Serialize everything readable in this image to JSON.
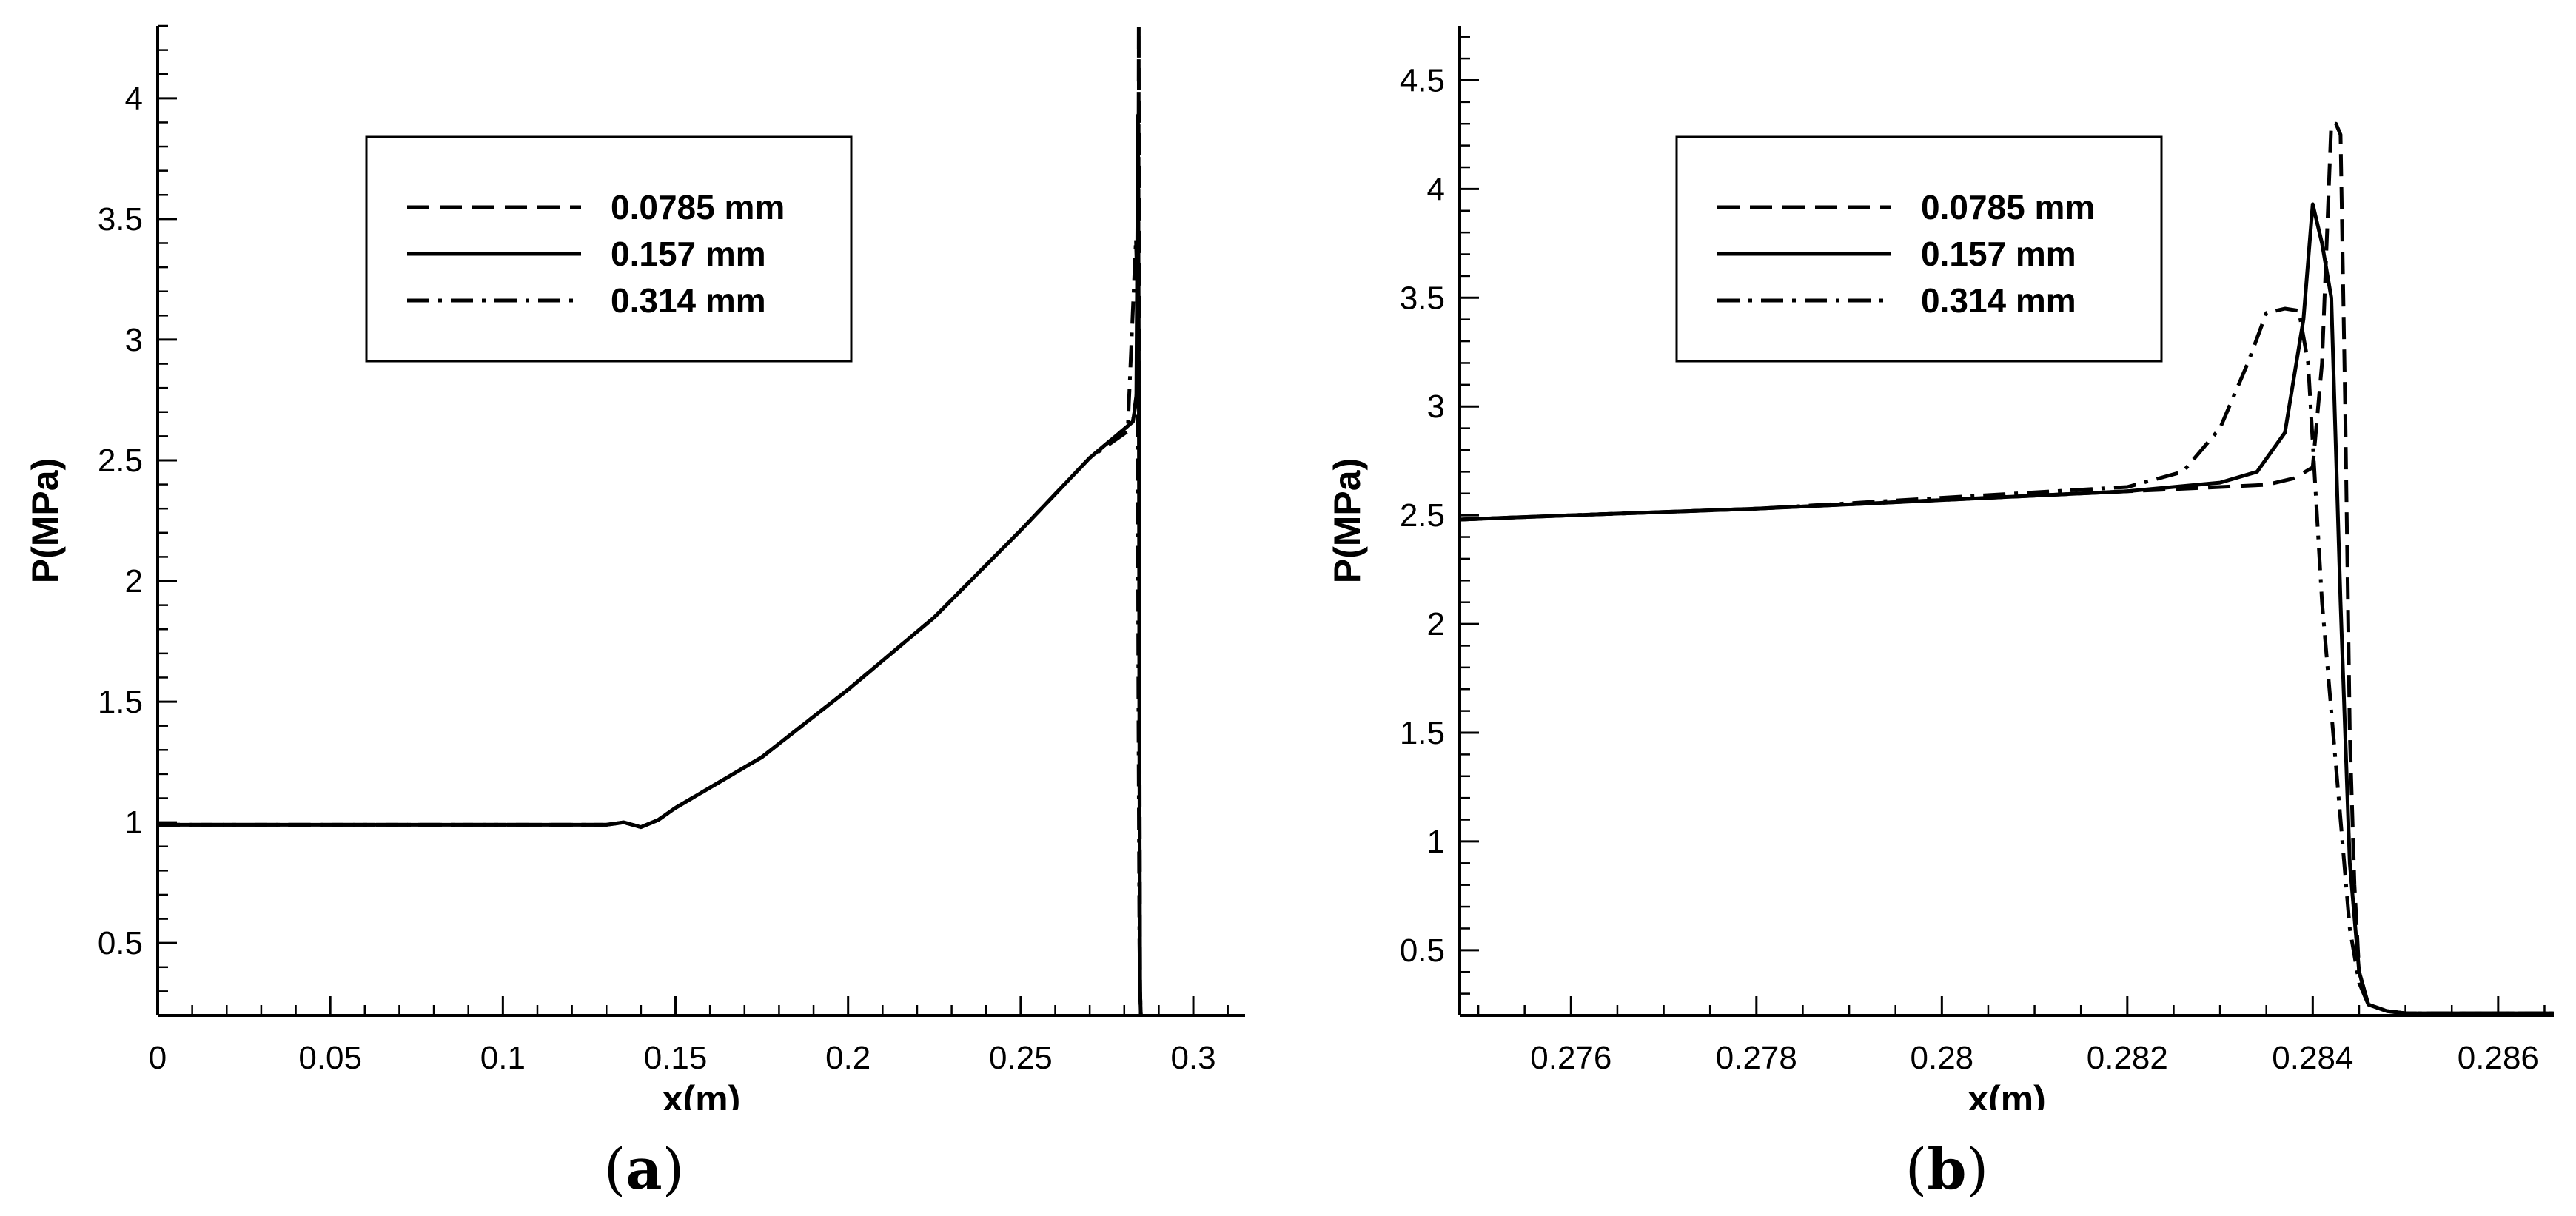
{
  "chart_data": [
    {
      "type": "line",
      "panel_label": "a",
      "xlabel": "x(m)",
      "ylabel": "P(MPa)",
      "xlim": [
        0,
        0.315
      ],
      "ylim": [
        0.2,
        4.3
      ],
      "xticks": [
        0,
        0.05,
        0.1,
        0.15,
        0.2,
        0.25,
        0.3
      ],
      "xtick_labels": [
        "0",
        "0.05",
        "0.1",
        "0.15",
        "0.2",
        "0.25",
        "0.3"
      ],
      "yticks": [
        0.5,
        1,
        1.5,
        2,
        2.5,
        3,
        3.5,
        4
      ],
      "ytick_labels": [
        "0.5",
        "1",
        "1.5",
        "2",
        "2.5",
        "3",
        "3.5",
        "4"
      ],
      "legend_position": "upper-center",
      "series": [
        {
          "name": "0.0785 mm",
          "style": "dashed",
          "x": [
            0,
            0.05,
            0.1,
            0.13,
            0.135,
            0.14,
            0.145,
            0.15,
            0.175,
            0.2,
            0.225,
            0.25,
            0.27,
            0.2825,
            0.2838,
            0.2841,
            0.2842,
            0.2843,
            0.2844,
            0.2846,
            0.2848
          ],
          "y": [
            0.99,
            0.99,
            0.99,
            0.99,
            1.0,
            0.98,
            1.01,
            1.06,
            1.27,
            1.55,
            1.85,
            2.21,
            2.51,
            2.66,
            2.8,
            3.3,
            4.3,
            3.0,
            1.5,
            0.3,
            0.2
          ]
        },
        {
          "name": "0.157 mm",
          "style": "solid",
          "x": [
            0,
            0.05,
            0.1,
            0.13,
            0.135,
            0.14,
            0.145,
            0.15,
            0.175,
            0.2,
            0.225,
            0.25,
            0.27,
            0.2825,
            0.2835,
            0.284,
            0.2842,
            0.2844,
            0.2846,
            0.2848
          ],
          "y": [
            0.99,
            0.99,
            0.99,
            0.99,
            1.0,
            0.98,
            1.01,
            1.06,
            1.27,
            1.55,
            1.85,
            2.21,
            2.51,
            2.66,
            2.75,
            3.93,
            3.0,
            1.2,
            0.3,
            0.2
          ]
        },
        {
          "name": "0.314 mm",
          "style": "dashdot",
          "x": [
            0,
            0.05,
            0.1,
            0.13,
            0.135,
            0.14,
            0.145,
            0.15,
            0.175,
            0.2,
            0.225,
            0.25,
            0.27,
            0.281,
            0.2834,
            0.2838,
            0.2841,
            0.2844,
            0.2846,
            0.2848
          ],
          "y": [
            0.99,
            0.99,
            0.99,
            0.99,
            1.0,
            0.98,
            1.01,
            1.06,
            1.27,
            1.55,
            1.85,
            2.21,
            2.51,
            2.62,
            3.42,
            3.2,
            1.5,
            0.5,
            0.3,
            0.2
          ]
        }
      ]
    },
    {
      "type": "line",
      "panel_label": "b",
      "xlabel": "x(m)",
      "ylabel": "P(MPa)",
      "xlim": [
        0.2748,
        0.2866
      ],
      "ylim": [
        0.2,
        4.75
      ],
      "xticks": [
        0.276,
        0.278,
        0.28,
        0.282,
        0.284,
        0.286
      ],
      "xtick_labels": [
        "0.276",
        "0.278",
        "0.28",
        "0.282",
        "0.284",
        "0.286"
      ],
      "yticks": [
        0.5,
        1,
        1.5,
        2,
        2.5,
        3,
        3.5,
        4,
        4.5
      ],
      "ytick_labels": [
        "0.5",
        "1",
        "1.5",
        "2",
        "2.5",
        "3",
        "3.5",
        "4",
        "4.5"
      ],
      "legend_position": "upper-center",
      "series": [
        {
          "name": "0.0785 mm",
          "style": "dashed",
          "x": [
            0.2748,
            0.276,
            0.278,
            0.28,
            0.282,
            0.283,
            0.2835,
            0.2838,
            0.284,
            0.2841,
            0.2842,
            0.28425,
            0.2843,
            0.28435,
            0.2844,
            0.28445,
            0.2845,
            0.2846,
            0.2848,
            0.285,
            0.2866
          ],
          "y": [
            2.48,
            2.5,
            2.53,
            2.57,
            2.61,
            2.63,
            2.64,
            2.67,
            2.72,
            3.2,
            4.3,
            4.3,
            4.25,
            3.0,
            1.5,
            0.8,
            0.4,
            0.25,
            0.22,
            0.21,
            0.21
          ]
        },
        {
          "name": "0.157 mm",
          "style": "solid",
          "x": [
            0.2748,
            0.276,
            0.278,
            0.28,
            0.282,
            0.283,
            0.2834,
            0.2837,
            0.2839,
            0.284,
            0.2841,
            0.2842,
            0.2843,
            0.2844,
            0.2845,
            0.2846,
            0.2848,
            0.285,
            0.2866
          ],
          "y": [
            2.48,
            2.5,
            2.53,
            2.57,
            2.61,
            2.65,
            2.7,
            2.88,
            3.4,
            3.93,
            3.75,
            3.5,
            2.1,
            0.9,
            0.4,
            0.25,
            0.22,
            0.21,
            0.21
          ]
        },
        {
          "name": "0.314 mm",
          "style": "dashdot",
          "x": [
            0.2748,
            0.276,
            0.278,
            0.28,
            0.282,
            0.2826,
            0.283,
            0.2833,
            0.2835,
            0.2837,
            0.28385,
            0.28395,
            0.2841,
            0.2843,
            0.2844,
            0.2845,
            0.2846,
            0.2848,
            0.285,
            0.2866
          ],
          "y": [
            2.48,
            2.5,
            2.53,
            2.58,
            2.63,
            2.7,
            2.9,
            3.2,
            3.43,
            3.45,
            3.44,
            3.2,
            2.1,
            1.1,
            0.6,
            0.35,
            0.25,
            0.22,
            0.21,
            0.21
          ]
        }
      ]
    }
  ]
}
